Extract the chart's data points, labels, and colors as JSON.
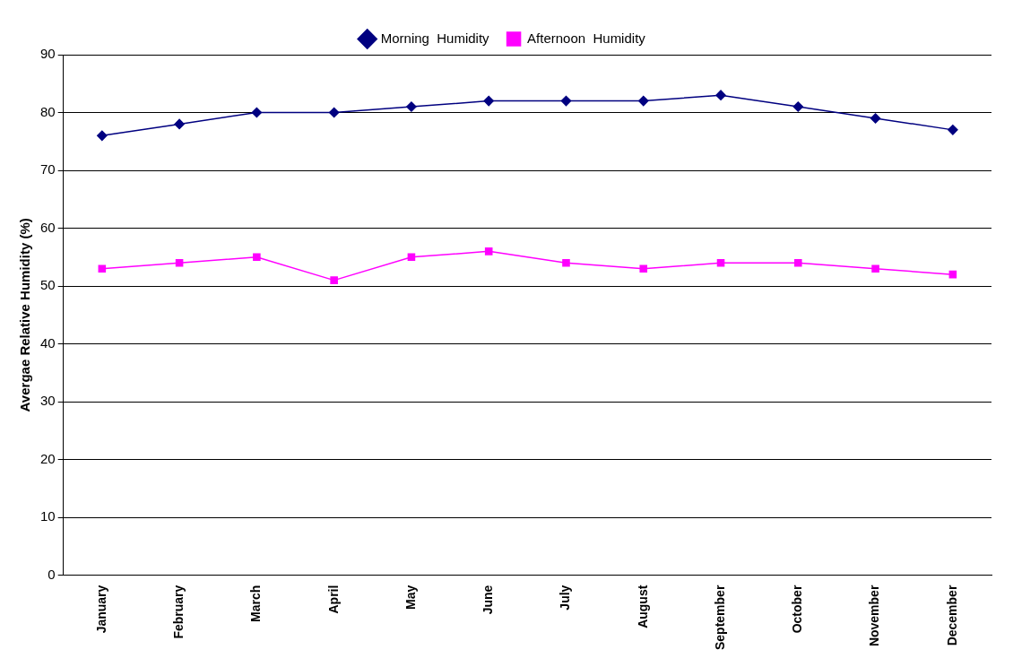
{
  "chart_data": {
    "type": "line",
    "ylabel": "Avergae Relative Humidity (%)",
    "categories": [
      "January",
      "February",
      "March",
      "April",
      "May",
      "June",
      "July",
      "August",
      "September",
      "October",
      "November",
      "December"
    ],
    "series": [
      {
        "name": "Morning  Humidity",
        "color": "#000080",
        "marker": "diamond",
        "values": [
          76,
          78,
          80,
          80,
          81,
          82,
          82,
          82,
          83,
          81,
          79,
          77
        ]
      },
      {
        "name": "Afternoon  Humidity",
        "color": "#ff00ff",
        "marker": "square",
        "values": [
          53,
          54,
          55,
          51,
          55,
          56,
          54,
          53,
          54,
          54,
          53,
          52
        ]
      }
    ],
    "ylim": [
      0,
      90
    ],
    "yticks": [
      0,
      10,
      20,
      30,
      40,
      50,
      60,
      70,
      80,
      90
    ],
    "grid": "y",
    "legend": "top"
  }
}
